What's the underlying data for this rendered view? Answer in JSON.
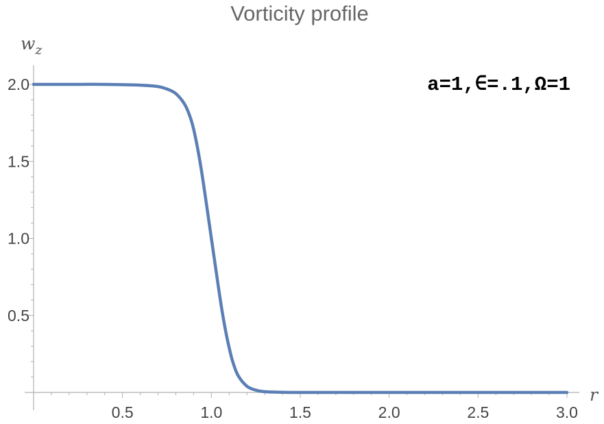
{
  "chart_data": {
    "type": "line",
    "title": "Vorticity profile",
    "xlabel": "r",
    "ylabel": "w_z",
    "ylabel_main": "w",
    "ylabel_sub": "z",
    "annotation": "a=1,∈=.1,Ω=1",
    "xlim": [
      0,
      3.05
    ],
    "ylim": [
      0,
      2.1
    ],
    "x_ticks": [
      0.5,
      1.0,
      1.5,
      2.0,
      2.5,
      3.0
    ],
    "x_tick_labels": [
      "0.5",
      "1.0",
      "1.5",
      "2.0",
      "2.5",
      "3.0"
    ],
    "y_ticks": [
      0.5,
      1.0,
      1.5,
      2.0
    ],
    "y_tick_labels": [
      "0.5",
      "1.0",
      "1.5",
      "2.0"
    ],
    "grid": false,
    "series": [
      {
        "color": "#5b7fb5",
        "x": [
          0.0,
          0.2,
          0.4,
          0.6,
          0.7,
          0.75,
          0.8,
          0.85,
          0.88,
          0.9,
          0.92,
          0.94,
          0.96,
          0.98,
          1.0,
          1.02,
          1.04,
          1.06,
          1.08,
          1.1,
          1.12,
          1.15,
          1.2,
          1.25,
          1.3,
          1.4,
          1.5,
          2.0,
          2.5,
          3.0
        ],
        "y": [
          2.0,
          2.0,
          2.0,
          1.995,
          1.986,
          1.97,
          1.94,
          1.87,
          1.79,
          1.71,
          1.6,
          1.47,
          1.32,
          1.16,
          1.0,
          0.84,
          0.68,
          0.53,
          0.4,
          0.29,
          0.2,
          0.11,
          0.04,
          0.015,
          0.005,
          0.001,
          0.0,
          0.0,
          0.0,
          0.0
        ]
      }
    ]
  }
}
